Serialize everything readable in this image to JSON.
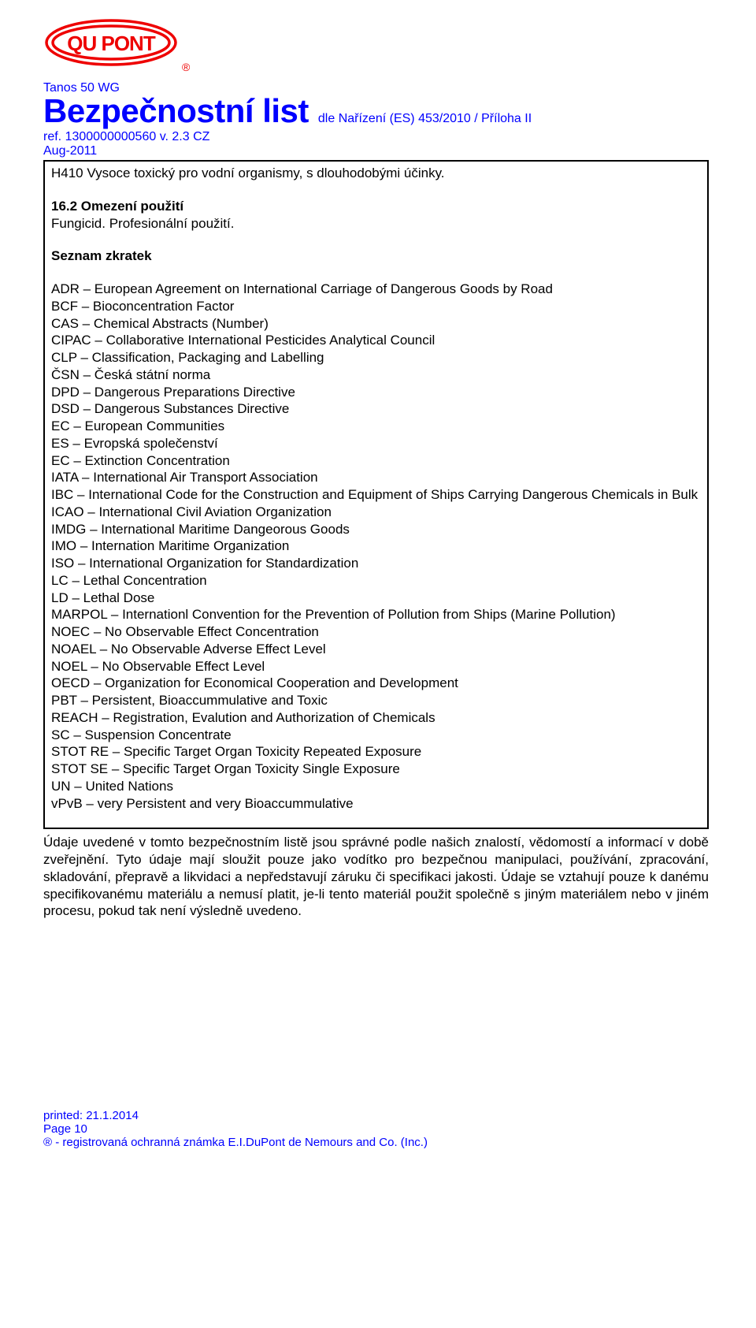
{
  "header": {
    "product": "Tanos 50 WG",
    "title": "Bezpečnostní list",
    "title_suffix": "dle Nařízení (ES)  453/2010 / Příloha II",
    "ref": "ref. 1300000000560 v. 2.3 CZ",
    "date": "Aug-2011"
  },
  "colors": {
    "header_color": "#0000ff",
    "body_color": "#000000",
    "border_color": "#000000",
    "background": "#ffffff"
  },
  "box": {
    "h410": "H410 Vysoce toxický pro vodní organismy, s dlouhodobými účinky.",
    "sec162_title": "16.2 Omezení použití",
    "sec162_l1": "Fungicid. Profesionální použití.",
    "zkratek_title": "Seznam zkratek",
    "abbr": [
      "ADR – European Agreement on International Carriage of Dangerous Goods by Road",
      "BCF – Bioconcentration Factor",
      "CAS – Chemical Abstracts (Number)",
      "CIPAC – Collaborative International Pesticides Analytical Council",
      "CLP – Classification, Packaging and Labelling",
      "ČSN – Česká státní norma",
      "DPD – Dangerous Preparations Directive",
      "DSD – Dangerous Substances Directive",
      "EC – European Communities",
      "ES – Evropská společenství",
      "EC – Extinction Concentration",
      "IATA – International Air Transport Association",
      "IBC – International Code for the Construction and Equipment of Ships Carrying Dangerous Chemicals in Bulk",
      "ICAO – International Civil Aviation Organization",
      "IMDG – International Maritime Dangeorous Goods",
      "IMO – Internation Maritime Organization",
      "ISO – International Organization for Standardization",
      "LC – Lethal Concentration",
      "LD – Lethal Dose",
      "MARPOL – Internationl Convention for the Prevention of Pollution from Ships (Marine Pollution)",
      "NOEC – No Observable Effect Concentration",
      "NOAEL – No Observable Adverse Effect Level",
      "NOEL – No Observable Effect Level",
      "OECD – Organization for Economical Cooperation and Development",
      "PBT – Persistent, Bioaccummulative and Toxic",
      "REACH – Registration, Evalution and Authorization of Chemicals",
      "SC – Suspension Concentrate",
      "STOT RE – Specific Target Organ Toxicity Repeated Exposure",
      "STOT SE – Specific Target Organ Toxicity Single Exposure",
      "UN – United Nations",
      "vPvB – very Persistent and very Bioaccummulative"
    ]
  },
  "disclaimer": "Údaje uvedené v tomto bezpečnostním listě jsou správné podle našich znalostí, vědomostí a informací v době zveřejnění. Tyto údaje mají sloužit pouze jako vodítko pro bezpečnou manipulaci, používání, zpracování, skladování, přepravě a likvidaci a nepředstavují záruku či specifikaci jakosti. Údaje se vztahují pouze k danému specifikovanému materiálu a nemusí platit, je-li tento materiál použit společně s jiným materiálem nebo v jiném procesu, pokud tak není výsledně uvedeno.",
  "footer": {
    "printed": "printed: 21.1.2014",
    "page": "Page 10",
    "trademark": "® - registrovaná ochranná známka E.I.DuPont de Nemours and Co. (Inc.)"
  }
}
